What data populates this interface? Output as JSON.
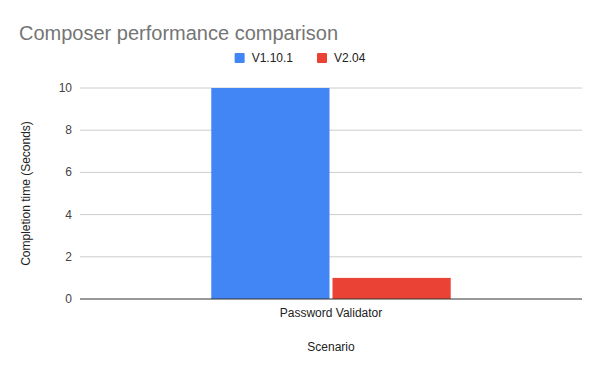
{
  "chart_data": {
    "type": "bar",
    "title": "Composer performance comparison",
    "x_label": "Scenario",
    "y_label": "Completion time (Seconds)",
    "categories": [
      "Password Validator"
    ],
    "series": [
      {
        "name": "V1.10.1",
        "color": "#4285f4",
        "values": [
          10
        ]
      },
      {
        "name": "V2.04",
        "color": "#ea4335",
        "values": [
          1
        ]
      }
    ],
    "ylim": [
      0,
      10
    ],
    "yticks": [
      0,
      2,
      4,
      6,
      8,
      10
    ],
    "grid": true,
    "legend": "top"
  }
}
